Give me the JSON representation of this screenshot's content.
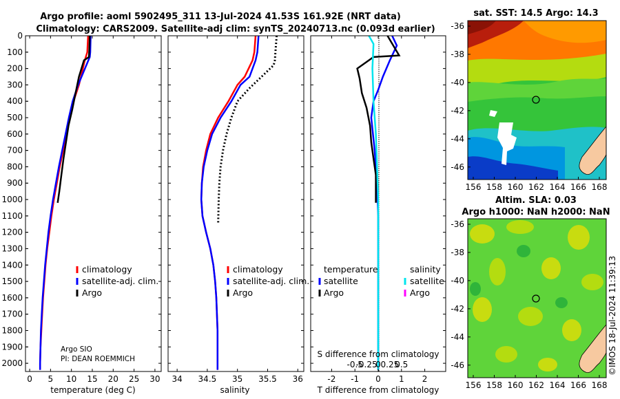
{
  "titles": {
    "line1": "Argo profile: aoml 5902495_311 13-Jul-2024 41.53S 161.92E (NRT data)",
    "line2": "Climatology: CARS2009. Satellite-adj clim: synTS_20240713.nc (0.093d earlier)"
  },
  "depth_axis": {
    "ticks": [
      0,
      100,
      200,
      300,
      400,
      500,
      600,
      700,
      800,
      900,
      1000,
      1100,
      1200,
      1300,
      1400,
      1500,
      1600,
      1700,
      1800,
      1900,
      2000
    ],
    "ylim": [
      0,
      2050
    ]
  },
  "panels": {
    "temperature": {
      "xlabel": "temperature (deg C)",
      "xticks": [
        0,
        5,
        10,
        15,
        20,
        25,
        30
      ],
      "xlim": [
        -1,
        31.5
      ],
      "legend": [
        "climatology",
        "satellite-adj. clim.",
        "Argo"
      ],
      "credit1": "Argo SIO",
      "credit2": "PI: DEAN ROEMMICH"
    },
    "salinity": {
      "xlabel": "salinity",
      "xticks": [
        34,
        34.5,
        35,
        35.5,
        36
      ],
      "xlim": [
        33.85,
        36.1
      ],
      "legend": [
        "climatology",
        "satellite-adj. clim.",
        "Argo"
      ]
    },
    "difference": {
      "xlabel": "T difference from climatology",
      "xlabel_top": "S difference from climatology",
      "xticks": [
        -2,
        -1,
        0,
        1,
        2
      ],
      "xtick_labels": [
        "-2",
        "-1",
        "0",
        "1",
        "2"
      ],
      "sticks": [
        "-0.5",
        "-0.25",
        "0",
        "0.25",
        "0.5"
      ],
      "xlim": [
        -2.9,
        2.9
      ],
      "legend_temp_title": "temperature",
      "legend_sal_title": "salinity",
      "legend_temp": [
        "satellite",
        "Argo"
      ],
      "legend_sal": [
        "satellite",
        "Argo"
      ]
    }
  },
  "maps": {
    "sst": {
      "title": "sat. SST: 14.5 Argo: 14.3",
      "yticks": [
        "-36",
        "-38",
        "-40",
        "-42",
        "-44",
        "-46"
      ],
      "xticks": [
        "156",
        "158",
        "160",
        "162",
        "164",
        "166",
        "168"
      ]
    },
    "sla": {
      "title1": "Altim. SLA: 0.03",
      "title2": "Argo h1000: NaN h2000: NaN",
      "yticks": [
        "-36",
        "-38",
        "-40",
        "-42",
        "-44",
        "-46"
      ],
      "xticks": [
        "156",
        "158",
        "160",
        "162",
        "164",
        "166",
        "168"
      ]
    }
  },
  "credit": "©IMOS 18-Jul-2024 11:39:13",
  "colors": {
    "climatology": "#ff0000",
    "satellite": "#0000ff",
    "argo": "#000000",
    "sat_salinity": "#00e5ee",
    "argo_salinity": "#ff00ff",
    "land": "#f7c9a0"
  },
  "chart_data": [
    {
      "type": "line",
      "title": "",
      "xlabel": "temperature (deg C)",
      "ylabel": "",
      "ylim": [
        0,
        2050
      ],
      "series": [
        {
          "name": "climatology",
          "x": [
            14.0,
            13.8,
            13.2,
            11.8,
            10.5,
            9.6,
            8.8,
            8.0,
            7.2,
            6.5,
            5.8,
            5.2,
            4.7,
            4.2,
            3.8,
            3.5,
            3.2,
            3.0,
            2.8,
            2.6,
            2.5,
            2.5
          ],
          "y": [
            0,
            100,
            150,
            300,
            400,
            500,
            600,
            700,
            800,
            900,
            1000,
            1100,
            1200,
            1300,
            1400,
            1500,
            1600,
            1700,
            1800,
            1900,
            2000,
            2040
          ]
        },
        {
          "name": "satellite-adj. clim.",
          "x": [
            14.6,
            14.5,
            14.4,
            11.6,
            10.3,
            9.4,
            8.6,
            7.8,
            7.0,
            6.3,
            5.6,
            5.0,
            4.5,
            4.1,
            3.7,
            3.4,
            3.1,
            2.9,
            2.7,
            2.6,
            2.5,
            2.5
          ],
          "y": [
            0,
            100,
            130,
            300,
            400,
            500,
            600,
            700,
            800,
            900,
            1000,
            1100,
            1200,
            1300,
            1400,
            1500,
            1600,
            1700,
            1800,
            1900,
            2000,
            2040
          ]
        },
        {
          "name": "Argo",
          "x": [
            14.4,
            14.3,
            14.2,
            13.0,
            11.8,
            11.0,
            10.2,
            9.3,
            8.7,
            8.1,
            7.6,
            7.1,
            6.7
          ],
          "y": [
            0,
            80,
            130,
            150,
            250,
            350,
            450,
            550,
            650,
            750,
            850,
            950,
            1020
          ]
        }
      ]
    },
    {
      "type": "line",
      "title": "",
      "xlabel": "salinity",
      "ylabel": "",
      "ylim": [
        0,
        2050
      ],
      "series": [
        {
          "name": "climatology",
          "x": [
            35.3,
            35.28,
            35.25,
            35.12,
            35.0,
            34.85,
            34.68,
            34.55,
            34.48,
            34.43,
            34.41,
            34.4,
            34.42,
            34.48,
            34.55,
            34.6,
            34.63,
            34.65,
            34.66,
            34.67,
            34.67,
            34.67
          ],
          "y": [
            0,
            100,
            150,
            250,
            300,
            400,
            500,
            600,
            700,
            800,
            900,
            1000,
            1100,
            1200,
            1300,
            1400,
            1500,
            1600,
            1700,
            1800,
            1900,
            2040
          ]
        },
        {
          "name": "satellite-adj. clim.",
          "x": [
            35.35,
            35.33,
            35.3,
            35.2,
            35.05,
            34.9,
            34.72,
            34.58,
            34.5,
            34.44,
            34.41,
            34.4,
            34.42,
            34.48,
            34.55,
            34.6,
            34.63,
            34.65,
            34.66,
            34.67,
            34.67,
            34.67
          ],
          "y": [
            0,
            100,
            150,
            250,
            300,
            400,
            500,
            600,
            700,
            800,
            900,
            1000,
            1100,
            1200,
            1300,
            1400,
            1500,
            1600,
            1700,
            1800,
            1900,
            2040
          ]
        },
        {
          "name": "Argo",
          "x": [
            35.65,
            35.63,
            35.62,
            35.6,
            35.4,
            35.2,
            35.0,
            34.9,
            34.82,
            34.76,
            34.72,
            34.7,
            34.69,
            34.68
          ],
          "y": [
            0,
            100,
            150,
            180,
            250,
            320,
            400,
            500,
            600,
            700,
            800,
            900,
            1000,
            1140
          ]
        }
      ]
    },
    {
      "type": "line",
      "title": "",
      "xlabel": "T difference from climatology",
      "ylabel": "",
      "ylim": [
        0,
        2050
      ],
      "series": [
        {
          "name": "temperature satellite",
          "x": [
            0.6,
            0.8,
            0.5,
            0.2,
            0.0,
            -0.2,
            -0.3,
            -0.15,
            -0.05,
            0.0,
            0.0,
            0.0,
            0.0
          ],
          "y": [
            0,
            60,
            150,
            250,
            330,
            400,
            500,
            700,
            900,
            1100,
            1500,
            1900,
            2040
          ]
        },
        {
          "name": "temperature Argo",
          "x": [
            0.4,
            0.9,
            -0.2,
            -0.9,
            -0.8,
            -0.7,
            -0.5,
            -0.35,
            -0.3,
            -0.2,
            -0.1,
            -0.1,
            -0.1
          ],
          "y": [
            0,
            120,
            130,
            200,
            260,
            350,
            440,
            550,
            650,
            750,
            850,
            950,
            1020
          ]
        },
        {
          "name": "salinity satellite",
          "x": [
            -0.4,
            -0.2,
            -0.25,
            -0.2,
            -0.1,
            -0.05,
            0.0,
            0.0,
            0.0,
            0.0
          ],
          "y": [
            0,
            50,
            200,
            400,
            600,
            800,
            1000,
            1400,
            1800,
            2040
          ]
        }
      ]
    }
  ]
}
